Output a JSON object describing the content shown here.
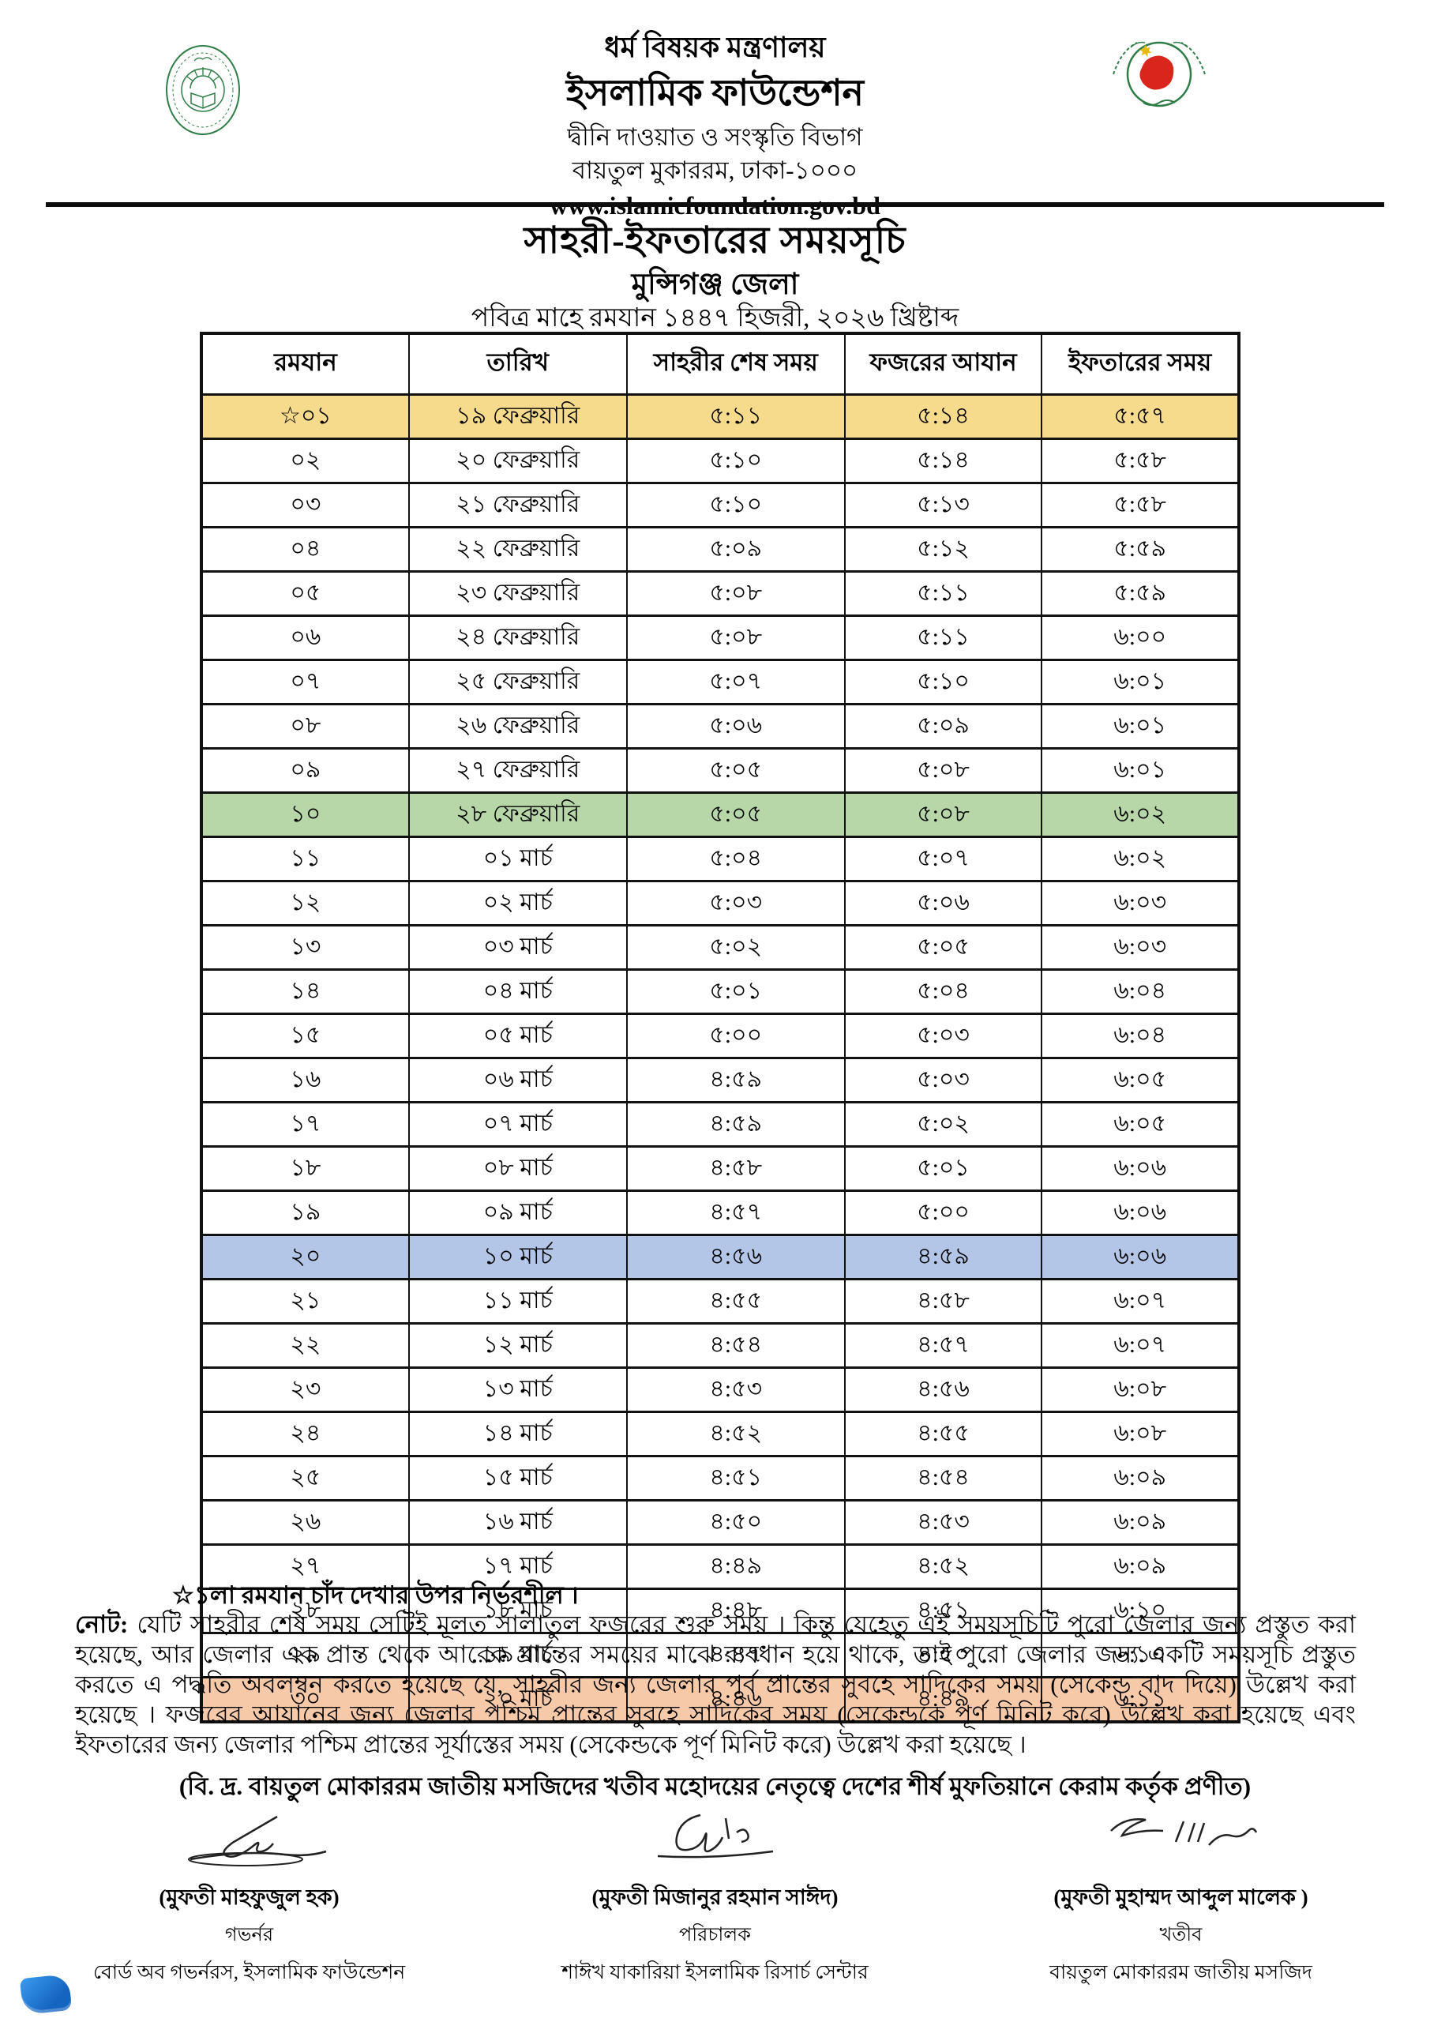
{
  "letterhead": {
    "ministry": "ধর্ম বিষয়ক মন্ত্রণালয়",
    "organization": "ইসলামিক ফাউন্ডেশন",
    "division": "দ্বীনি দাওয়াত ও সংস্কৃতি বিভাগ",
    "address": "বায়তুল মুকাররম, ঢাকা-১০০০",
    "website": "www.islamicfoundation.gov.bd"
  },
  "title": {
    "main": "সাহরী-ইফতারের সময়সূচি",
    "district": "মুন্সিগঞ্জ জেলা",
    "subtitle": "পবিত্র মাহে রমযান ১৪৪৭ হিজরী, ২০২৬ খ্রিষ্টাব্দ"
  },
  "colors": {
    "highlights": {
      "yellow": "#F6DB8D",
      "green": "#B7D7A8",
      "blue": "#B4C6E7",
      "orange": "#F6C9A8"
    },
    "logo_green": "#2e7d46",
    "logo_red": "#d9251c",
    "border": "#111111"
  },
  "table": {
    "headers": [
      "রমযান",
      "তারিখ",
      "সাহরীর শেষ সময়",
      "ফজরের আযান",
      "ইফতারের সময়"
    ],
    "rows": [
      {
        "ramadan": "☆০১",
        "date": "১৯ ফেব্রুয়ারি",
        "sehri": "৫:১১",
        "fajr": "৫:১৪",
        "iftar": "৫:৫৭",
        "hl": "yellow"
      },
      {
        "ramadan": "০২",
        "date": "২০ ফেব্রুয়ারি",
        "sehri": "৫:১০",
        "fajr": "৫:১৪",
        "iftar": "৫:৫৮",
        "hl": ""
      },
      {
        "ramadan": "০৩",
        "date": "২১ ফেব্রুয়ারি",
        "sehri": "৫:১০",
        "fajr": "৫:১৩",
        "iftar": "৫:৫৮",
        "hl": ""
      },
      {
        "ramadan": "০৪",
        "date": "২২ ফেব্রুয়ারি",
        "sehri": "৫:০৯",
        "fajr": "৫:১২",
        "iftar": "৫:৫৯",
        "hl": ""
      },
      {
        "ramadan": "০৫",
        "date": "২৩ ফেব্রুয়ারি",
        "sehri": "৫:০৮",
        "fajr": "৫:১১",
        "iftar": "৫:৫৯",
        "hl": ""
      },
      {
        "ramadan": "০৬",
        "date": "২৪ ফেব্রুয়ারি",
        "sehri": "৫:০৮",
        "fajr": "৫:১১",
        "iftar": "৬:০০",
        "hl": ""
      },
      {
        "ramadan": "০৭",
        "date": "২৫ ফেব্রুয়ারি",
        "sehri": "৫:০৭",
        "fajr": "৫:১০",
        "iftar": "৬:০১",
        "hl": ""
      },
      {
        "ramadan": "০৮",
        "date": "২৬ ফেব্রুয়ারি",
        "sehri": "৫:০৬",
        "fajr": "৫:০৯",
        "iftar": "৬:০১",
        "hl": ""
      },
      {
        "ramadan": "০৯",
        "date": "২৭ ফেব্রুয়ারি",
        "sehri": "৫:০৫",
        "fajr": "৫:০৮",
        "iftar": "৬:০১",
        "hl": ""
      },
      {
        "ramadan": "১০",
        "date": "২৮ ফেব্রুয়ারি",
        "sehri": "৫:০৫",
        "fajr": "৫:০৮",
        "iftar": "৬:০২",
        "hl": "green"
      },
      {
        "ramadan": "১১",
        "date": "০১ মার্চ",
        "sehri": "৫:০৪",
        "fajr": "৫:০৭",
        "iftar": "৬:০২",
        "hl": ""
      },
      {
        "ramadan": "১২",
        "date": "০২ মার্চ",
        "sehri": "৫:০৩",
        "fajr": "৫:০৬",
        "iftar": "৬:০৩",
        "hl": ""
      },
      {
        "ramadan": "১৩",
        "date": "০৩ মার্চ",
        "sehri": "৫:০২",
        "fajr": "৫:০৫",
        "iftar": "৬:০৩",
        "hl": ""
      },
      {
        "ramadan": "১৪",
        "date": "০৪ মার্চ",
        "sehri": "৫:০১",
        "fajr": "৫:০৪",
        "iftar": "৬:০৪",
        "hl": ""
      },
      {
        "ramadan": "১৫",
        "date": "০৫ মার্চ",
        "sehri": "৫:০০",
        "fajr": "৫:০৩",
        "iftar": "৬:০৪",
        "hl": ""
      },
      {
        "ramadan": "১৬",
        "date": "০৬ মার্চ",
        "sehri": "৪:৫৯",
        "fajr": "৫:০৩",
        "iftar": "৬:০৫",
        "hl": ""
      },
      {
        "ramadan": "১৭",
        "date": "০৭ মার্চ",
        "sehri": "৪:৫৯",
        "fajr": "৫:০২",
        "iftar": "৬:০৫",
        "hl": ""
      },
      {
        "ramadan": "১৮",
        "date": "০৮ মার্চ",
        "sehri": "৪:৫৮",
        "fajr": "৫:০১",
        "iftar": "৬:০৬",
        "hl": ""
      },
      {
        "ramadan": "১৯",
        "date": "০৯ মার্চ",
        "sehri": "৪:৫৭",
        "fajr": "৫:০০",
        "iftar": "৬:০৬",
        "hl": ""
      },
      {
        "ramadan": "২০",
        "date": "১০ মার্চ",
        "sehri": "৪:৫৬",
        "fajr": "৪:৫৯",
        "iftar": "৬:০৬",
        "hl": "blue"
      },
      {
        "ramadan": "২১",
        "date": "১১ মার্চ",
        "sehri": "৪:৫৫",
        "fajr": "৪:৫৮",
        "iftar": "৬:০৭",
        "hl": ""
      },
      {
        "ramadan": "২২",
        "date": "১২ মার্চ",
        "sehri": "৪:৫৪",
        "fajr": "৪:৫৭",
        "iftar": "৬:০৭",
        "hl": ""
      },
      {
        "ramadan": "২৩",
        "date": "১৩ মার্চ",
        "sehri": "৪:৫৩",
        "fajr": "৪:৫৬",
        "iftar": "৬:০৮",
        "hl": ""
      },
      {
        "ramadan": "২৪",
        "date": "১৪ মার্চ",
        "sehri": "৪:৫২",
        "fajr": "৪:৫৫",
        "iftar": "৬:০৮",
        "hl": ""
      },
      {
        "ramadan": "২৫",
        "date": "১৫ মার্চ",
        "sehri": "৪:৫১",
        "fajr": "৪:৫৪",
        "iftar": "৬:০৯",
        "hl": ""
      },
      {
        "ramadan": "২৬",
        "date": "১৬ মার্চ",
        "sehri": "৪:৫০",
        "fajr": "৪:৫৩",
        "iftar": "৬:০৯",
        "hl": ""
      },
      {
        "ramadan": "২৭",
        "date": "১৭ মার্চ",
        "sehri": "৪:৪৯",
        "fajr": "৪:৫২",
        "iftar": "৬:০৯",
        "hl": ""
      },
      {
        "ramadan": "২৮",
        "date": "১৮ মার্চ",
        "sehri": "৪:৪৮",
        "fajr": "৪:৫১",
        "iftar": "৬:১০",
        "hl": ""
      },
      {
        "ramadan": "২৯",
        "date": "১৯ মার্চ",
        "sehri": "৪:৪৭",
        "fajr": "৪:৫০",
        "iftar": "৬:১০",
        "hl": ""
      },
      {
        "ramadan": "৩০",
        "date": "২০ মার্চ",
        "sehri": "৪:৪৬",
        "fajr": "৪:৪৯",
        "iftar": "৬:১১",
        "hl": "orange"
      }
    ]
  },
  "footnote": "☆১লা রমযান চাঁদ দেখার উপর নির্ভরশীল ।",
  "note": {
    "label": "নোট:",
    "text": "যেটি সাহরীর শেষ সময় সেটিই মূলত সালাতুল ফজরের শুরু সময় । কিন্তু যেহেতু এই সময়সূচিটি পুরো জেলার জন্য প্রস্তুত করা হয়েছে, আর জেলার এক প্রান্ত থেকে আরেক প্রান্তের সময়ের মাঝে ব্যবধান হয়ে থাকে, তাই পুরো জেলার জন্য একটি সময়সূচি প্রস্তুত করতে এ পদ্ধতি অবলম্বন করতে হয়েছে যে, সাহরীর জন্য জেলার পূর্ব প্রান্তের সুবহে সাদিকের সময় (সেকেন্ড বাদ দিয়ে) উল্লেখ করা হয়েছে । ফজরের আযানের জন্য জেলার পশ্চিম প্রান্তের সুবহে সাদিকের সময় (সেকেন্ডকে পূর্ণ মিনিট করে) উল্লেখ করা হয়েছে এবং ইফতারের জন্য জেলার পশ্চিম প্রান্তের সূর্যাস্তের সময় (সেকেন্ডকে পূর্ণ মিনিট করে) উল্লেখ করা হয়েছে ।"
  },
  "attribution": "(বি. দ্র. বায়তুল মোকাররম জাতীয় মসজিদের খতীব মহোদয়ের নেতৃত্বে দেশের শীর্ষ মুফতিয়ানে কেরাম কর্তৃক প্রণীত)",
  "signatories": [
    {
      "name": "(মুফতী মাহফুজুল হক)",
      "title": "গভর্নর",
      "org": "বোর্ড অব গভর্নরস, ইসলামিক ফাউন্ডেশন"
    },
    {
      "name": "(মুফতী মিজানুর রহমান সাঈদ)",
      "title": "পরিচালক",
      "org": "শাঈখ যাকারিয়া ইসলামিক রিসার্চ সেন্টার"
    },
    {
      "name": "(মুফতী মুহাম্মদ আব্দুল মালেক )",
      "title": "খতীব",
      "org": "বায়তুল মোকাররম জাতীয় মসজিদ"
    }
  ]
}
